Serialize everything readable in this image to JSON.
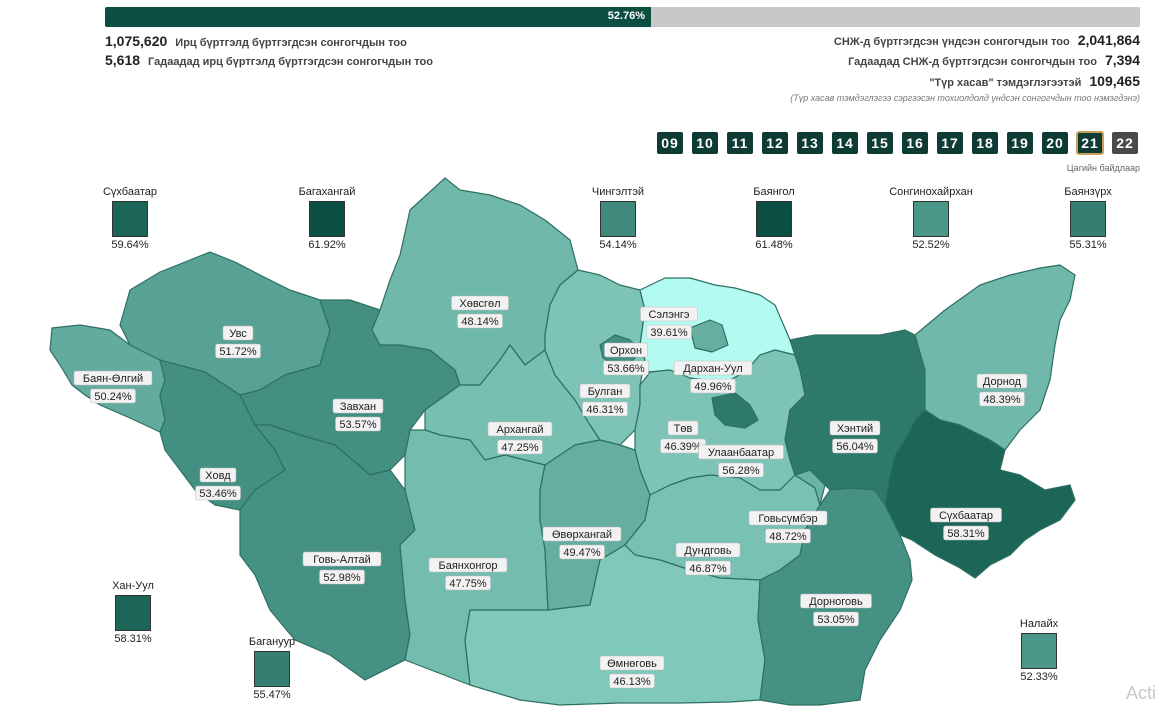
{
  "progress": {
    "percent_label": "52.76%",
    "value": 52.76
  },
  "stats_left": [
    {
      "number": "1,075,620",
      "label": "Ирц бүртгэлд бүртгэгдсэн сонгогчдын тоо"
    },
    {
      "number": "5,618",
      "label": "Гадаадад ирц бүртгэлд бүртгэгдсэн сонгогчдын тоо"
    }
  ],
  "stats_right": [
    {
      "label": "СНЖ-д бүртгэгдсэн үндсэн сонгогчдын тоо",
      "number": "2,041,864"
    },
    {
      "label": "Гадаадад СНЖ-д бүртгэгдсэн сонгогчдын тоо",
      "number": "7,394"
    },
    {
      "label": "\"Түр хасав\" тэмдэглэгээтэй",
      "number": "109,465"
    }
  ],
  "note": "(Түр хасав тэмдэглэгээ сэргээсэн тохиолдолд үндсэн сонгогчдын тоо нэмэгдэнэ)",
  "timeline": {
    "hours": [
      "09",
      "10",
      "11",
      "12",
      "13",
      "14",
      "15",
      "16",
      "17",
      "18",
      "19",
      "20",
      "21",
      "22"
    ],
    "active": "21",
    "caption": "Цагийн байдлаар"
  },
  "legend_districts": [
    {
      "name": "Сүхбаатар",
      "pct": "59.64%",
      "color": "#1b6656"
    },
    {
      "name": "Багахангай",
      "pct": "61.92%",
      "color": "#0b4f43"
    },
    {
      "name": "Чингэлтэй",
      "pct": "54.14%",
      "color": "#3f8a7c"
    },
    {
      "name": "Баянгол",
      "pct": "61.48%",
      "color": "#0b4f43"
    },
    {
      "name": "Сонгинохайрхан",
      "pct": "52.52%",
      "color": "#4a9788"
    },
    {
      "name": "Баянзүрх",
      "pct": "55.31%",
      "color": "#357f70"
    },
    {
      "name": "Хан-Уул",
      "pct": "58.31%",
      "color": "#1b6656"
    },
    {
      "name": "Багануур",
      "pct": "55.47%",
      "color": "#357f70"
    },
    {
      "name": "Налайх",
      "pct": "52.33%",
      "color": "#4a9788"
    }
  ],
  "provinces": [
    {
      "name": "Увс",
      "pct": "51.72%",
      "color": "#57a295"
    },
    {
      "name": "Баян-Өлгий",
      "pct": "50.24%",
      "color": "#62ab9e"
    },
    {
      "name": "Завхан",
      "pct": "53.57%",
      "color": "#439083"
    },
    {
      "name": "Ховд",
      "pct": "53.46%",
      "color": "#439083"
    },
    {
      "name": "Говь-Алтай",
      "pct": "52.98%",
      "color": "#459285"
    },
    {
      "name": "Хөвсгөл",
      "pct": "48.14%",
      "color": "#6fb8aa"
    },
    {
      "name": "Архангай",
      "pct": "47.25%",
      "color": "#77bfb1"
    },
    {
      "name": "Баянхонгор",
      "pct": "47.75%",
      "color": "#73bcae"
    },
    {
      "name": "Булган",
      "pct": "46.31%",
      "color": "#7dc4b6"
    },
    {
      "name": "Орхон",
      "pct": "53.66%",
      "color": "#439083"
    },
    {
      "name": "Сэлэнгэ",
      "pct": "39.61%",
      "color": "#b3fbf0"
    },
    {
      "name": "Дархан-Уул",
      "pct": "49.96%",
      "color": "#66ae9f"
    },
    {
      "name": "Төв",
      "pct": "46.39%",
      "color": "#7dc4b6"
    },
    {
      "name": "Улаанбаатар",
      "pct": "56.28%",
      "color": "#2d7a6b"
    },
    {
      "name": "Өвөрхангай",
      "pct": "49.47%",
      "color": "#66ae9f"
    },
    {
      "name": "Дундговь",
      "pct": "46.87%",
      "color": "#79c1b3"
    },
    {
      "name": "Өмнөговь",
      "pct": "46.13%",
      "color": "#80c8ba"
    },
    {
      "name": "Говьсүмбэр",
      "pct": "48.72%",
      "color": "#6bb3a5"
    },
    {
      "name": "Дорноговь",
      "pct": "53.05%",
      "color": "#459285"
    },
    {
      "name": "Хэнтий",
      "pct": "56.04%",
      "color": "#2d7a6b"
    },
    {
      "name": "Дорнод",
      "pct": "48.39%",
      "color": "#6fb8aa"
    },
    {
      "name": "Сүхбаатар",
      "pct": "58.31%",
      "color": "#1b6656"
    }
  ],
  "watermark": "Acti"
}
